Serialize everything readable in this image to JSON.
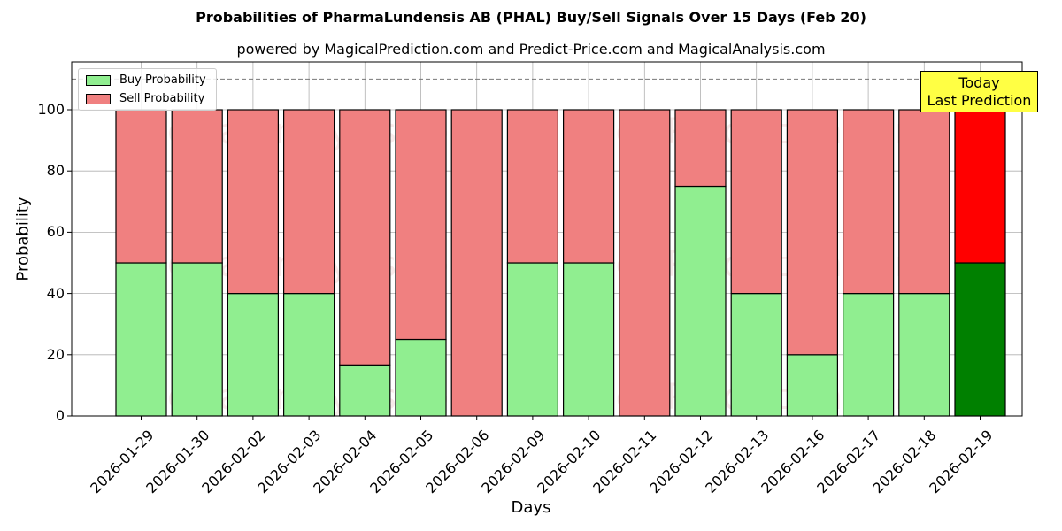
{
  "chart_data": {
    "type": "bar",
    "stacked": true,
    "title": "Probabilities of PharmaLundensis AB (PHAL) Buy/Sell Signals Over 15 Days (Feb 20)",
    "subtitle": "powered by MagicalPrediction.com and Predict-Price.com and MagicalAnalysis.com",
    "xlabel": "Days",
    "ylabel": "Probability",
    "ylim": [
      0,
      115
    ],
    "yticks": [
      0,
      20,
      40,
      60,
      80,
      100
    ],
    "grid": true,
    "hline": 110,
    "legend_position": "upper left",
    "categories": [
      "2026-01-29",
      "2026-01-30",
      "2026-02-02",
      "2026-02-03",
      "2026-02-04",
      "2026-02-05",
      "2026-02-06",
      "2026-02-09",
      "2026-02-10",
      "2026-02-11",
      "2026-02-12",
      "2026-02-13",
      "2026-02-16",
      "2026-02-17",
      "2026-02-18",
      "2026-02-19"
    ],
    "series": [
      {
        "name": "Buy Probability",
        "color": "#90ee90",
        "values": [
          50,
          50,
          40,
          40,
          16.67,
          25,
          0,
          50,
          50,
          0,
          75,
          40,
          20,
          40,
          40,
          50
        ]
      },
      {
        "name": "Sell Probability",
        "color": "#f08080",
        "values": [
          50,
          50,
          60,
          60,
          83.33,
          75,
          100,
          50,
          50,
          100,
          25,
          60,
          80,
          60,
          60,
          50
        ]
      }
    ],
    "highlight": {
      "index": 15,
      "buy_color": "#008000",
      "sell_color": "#ff0000"
    },
    "annotation": {
      "line1": "Today",
      "line2": "Last Prediction",
      "color": "#ffff44"
    },
    "watermarks": [
      "MagicalAnalysis.com",
      "MagicalPrediction.com"
    ]
  }
}
